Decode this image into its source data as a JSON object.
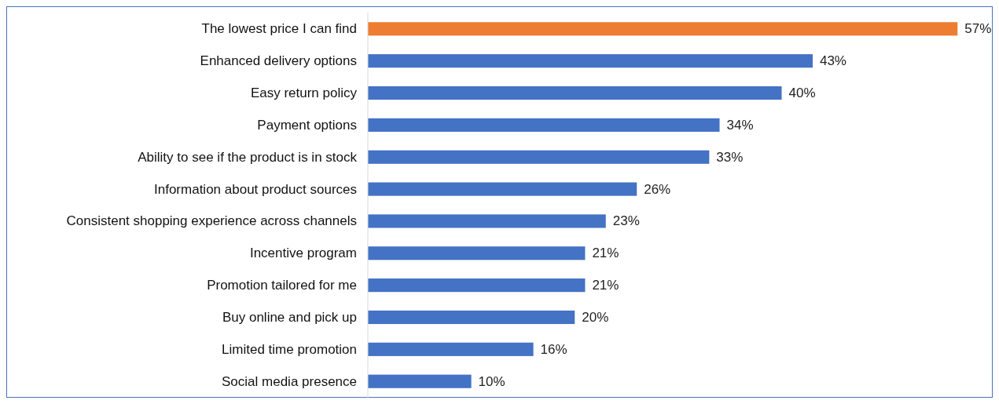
{
  "chart_data": {
    "type": "bar",
    "orientation": "horizontal",
    "value_labels": [
      "57%",
      "43%",
      "40%",
      "34%",
      "33%",
      "26%",
      "23%",
      "21%",
      "21%",
      "20%",
      "16%",
      "10%"
    ],
    "categories": [
      "The lowest price I can find",
      "Enhanced delivery options",
      "Easy return policy",
      "Payment options",
      "Ability to see if the product is in stock",
      "Information about product sources",
      "Consistent shopping experience across channels",
      "Incentive program",
      "Promotion tailored for me",
      "Buy online and pick up",
      "Limited time promotion",
      "Social media presence"
    ],
    "values": [
      57,
      43,
      40,
      34,
      33,
      26,
      23,
      21,
      21,
      20,
      16,
      10
    ],
    "colors": [
      "#ed7d31",
      "#4472c4",
      "#4472c4",
      "#4472c4",
      "#4472c4",
      "#4472c4",
      "#4472c4",
      "#4472c4",
      "#4472c4",
      "#4472c4",
      "#4472c4",
      "#4472c4"
    ]
  }
}
